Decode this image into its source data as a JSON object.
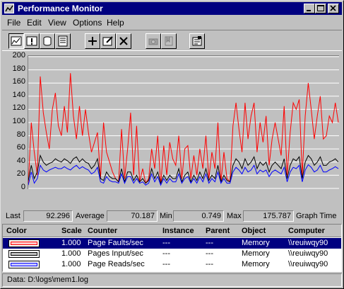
{
  "window": {
    "title": "Performance Monitor"
  },
  "menu": [
    {
      "label": "File",
      "key": "F"
    },
    {
      "label": "Edit",
      "key": "E"
    },
    {
      "label": "View",
      "key": "V"
    },
    {
      "label": "Options",
      "key": "O"
    },
    {
      "label": "Help",
      "key": "H"
    }
  ],
  "toolbar": [
    {
      "icon": "chart-view-icon",
      "pressed": true
    },
    {
      "icon": "alert-view-icon",
      "pressed": false
    },
    {
      "icon": "log-view-icon",
      "pressed": false
    },
    {
      "icon": "report-view-icon",
      "pressed": false
    },
    {
      "icon": "add-counter-icon",
      "pressed": false
    },
    {
      "icon": "edit-counter-icon",
      "pressed": false
    },
    {
      "icon": "delete-counter-icon",
      "pressed": false
    },
    {
      "icon": "update-now-icon",
      "pressed": false,
      "disabled": true
    },
    {
      "icon": "bookmark-icon",
      "pressed": false,
      "disabled": true
    },
    {
      "icon": "options-icon",
      "pressed": false
    }
  ],
  "chart_data": {
    "type": "line",
    "ylim": [
      0,
      200
    ],
    "yticks": [
      "200",
      "180",
      "160",
      "140",
      "120",
      "100",
      "80",
      "60",
      "40",
      "20",
      "0"
    ],
    "grid": "horizontal",
    "series": [
      {
        "name": "Page Faults/sec",
        "color": "#ff0000",
        "values": [
          5,
          100,
          55,
          20,
          170,
          115,
          85,
          60,
          120,
          145,
          95,
          80,
          125,
          85,
          175,
          110,
          75,
          125,
          80,
          120,
          85,
          55,
          70,
          85,
          15,
          100,
          55,
          40,
          25,
          15,
          10,
          90,
          15,
          60,
          115,
          20,
          95,
          10,
          30,
          8,
          15,
          60,
          30,
          80,
          5,
          65,
          20,
          70,
          45,
          35,
          80,
          15,
          60,
          65,
          15,
          50,
          20,
          60,
          30,
          80,
          15,
          55,
          30,
          100,
          10,
          55,
          15,
          10,
          95,
          130,
          90,
          55,
          130,
          75,
          110,
          130,
          55,
          100,
          70,
          110,
          35,
          75,
          100,
          75,
          50,
          125,
          20,
          85,
          130,
          120,
          135,
          20,
          110,
          160,
          120,
          75,
          110,
          140,
          75,
          80,
          110,
          100,
          130,
          100
        ]
      },
      {
        "name": "Pages Input/sec",
        "color": "#000000",
        "values": [
          12,
          35,
          15,
          25,
          50,
          40,
          35,
          38,
          40,
          45,
          42,
          40,
          45,
          42,
          38,
          45,
          48,
          40,
          45,
          40,
          38,
          30,
          35,
          45,
          15,
          12,
          25,
          18,
          15,
          15,
          10,
          30,
          10,
          25,
          25,
          12,
          20,
          10,
          15,
          8,
          12,
          30,
          15,
          25,
          8,
          20,
          12,
          20,
          15,
          15,
          30,
          10,
          20,
          25,
          10,
          20,
          12,
          25,
          15,
          30,
          12,
          20,
          15,
          35,
          10,
          20,
          12,
          10,
          35,
          45,
          40,
          30,
          45,
          35,
          40,
          48,
          30,
          40,
          35,
          40,
          25,
          35,
          40,
          35,
          30,
          45,
          15,
          35,
          45,
          42,
          48,
          15,
          40,
          50,
          45,
          35,
          40,
          48,
          35,
          35,
          40,
          42,
          45,
          40
        ]
      },
      {
        "name": "Page Reads/sec",
        "color": "#0000ff",
        "values": [
          5,
          25,
          8,
          15,
          35,
          28,
          25,
          28,
          30,
          32,
          30,
          30,
          33,
          30,
          28,
          32,
          35,
          30,
          33,
          30,
          28,
          22,
          25,
          32,
          10,
          8,
          18,
          12,
          10,
          10,
          8,
          22,
          8,
          18,
          18,
          8,
          15,
          8,
          10,
          5,
          8,
          22,
          10,
          18,
          5,
          15,
          8,
          15,
          10,
          10,
          22,
          8,
          15,
          18,
          8,
          15,
          8,
          18,
          10,
          22,
          8,
          15,
          10,
          25,
          8,
          15,
          8,
          8,
          25,
          32,
          28,
          22,
          32,
          25,
          28,
          35,
          22,
          28,
          25,
          28,
          18,
          25,
          28,
          25,
          22,
          32,
          10,
          25,
          32,
          30,
          35,
          10,
          28,
          36,
          32,
          25,
          28,
          35,
          25,
          25,
          28,
          30,
          33,
          30
        ]
      }
    ]
  },
  "stats": {
    "last_label": "Last",
    "last": "92.296",
    "avg_label": "Average",
    "avg": "70.187",
    "min_label": "Min",
    "min": "0.749",
    "max_label": "Max",
    "max": "175.787",
    "graph_time_label": "Graph Time"
  },
  "legend": {
    "headers": {
      "color": "Color",
      "scale": "Scale",
      "counter": "Counter",
      "instance": "Instance",
      "parent": "Parent",
      "object": "Object",
      "computer": "Computer"
    },
    "rows": [
      {
        "color": "#ff0000",
        "scale": "1.000",
        "counter": "Page Faults/sec",
        "instance": "---",
        "parent": "---",
        "object": "Memory",
        "computer": "\\\\reuiwqy90"
      },
      {
        "color": "#000000",
        "scale": "1.000",
        "counter": "Pages Input/sec",
        "instance": "---",
        "parent": "---",
        "object": "Memory",
        "computer": "\\\\reuiwqy90"
      },
      {
        "color": "#0000ff",
        "scale": "1.000",
        "counter": "Page Reads/sec",
        "instance": "---",
        "parent": "---",
        "object": "Memory",
        "computer": "\\\\reuiwqy90"
      }
    ]
  },
  "status": {
    "text": "Data: D:\\logs\\mem1.log"
  }
}
